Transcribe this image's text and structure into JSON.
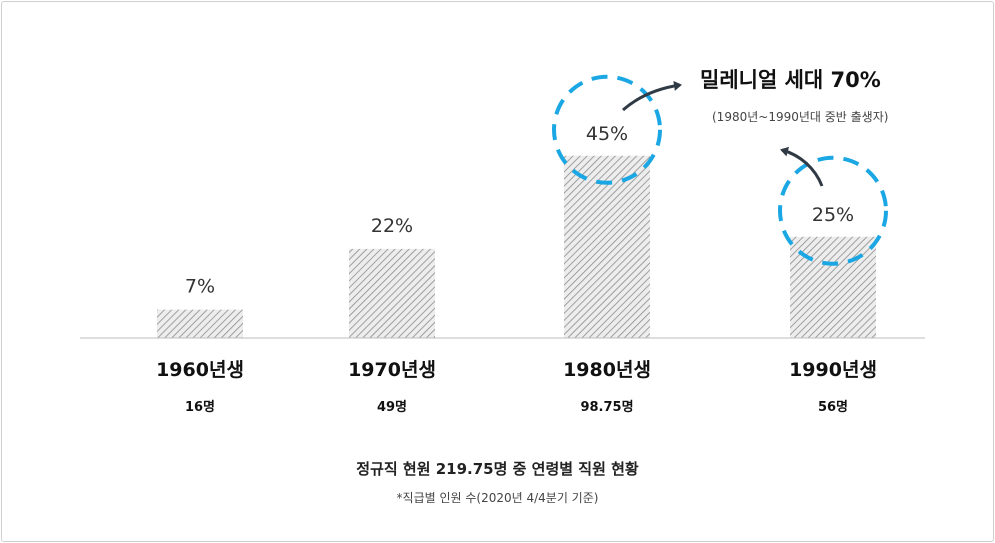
{
  "chart_data": {
    "type": "bar",
    "categories": [
      "1960년생",
      "1970년생",
      "1980년생",
      "1990년생"
    ],
    "values": [
      7,
      22,
      45,
      25
    ],
    "value_labels": [
      "7%",
      "22%",
      "45%",
      "25%"
    ],
    "counts": [
      "16명",
      "49명",
      "98.75명",
      "56명"
    ],
    "ylim": [
      0,
      50
    ],
    "highlighted": [
      "1980년생",
      "1990년생"
    ],
    "bar_fill": "hatched-gray",
    "highlight_color": "#1aa7e3",
    "grid": false,
    "title": "정규직 현원 219.75명 중 연령별 직원 현황",
    "note": "*직급별 인원 수(2020년 4/4분기 기준)"
  },
  "callout": {
    "title": "밀레니얼 세대 70%",
    "subtitle": "(1980년~1990년대 중반 출생자)"
  }
}
